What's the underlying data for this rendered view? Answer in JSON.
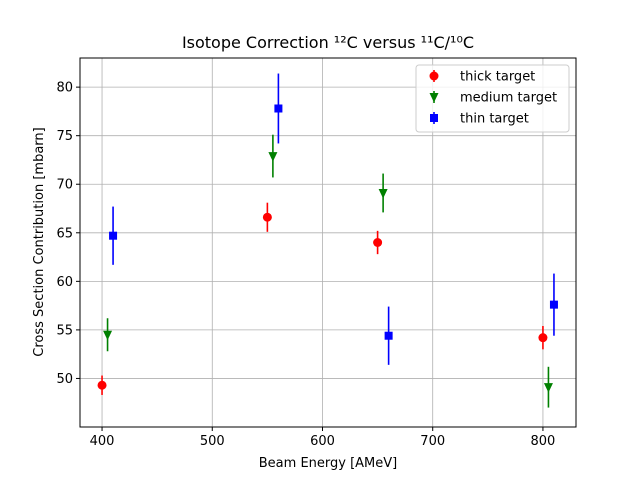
{
  "chart_data": {
    "type": "scatter",
    "title": "Isotope Correction ¹²C  versus ¹¹C/¹⁰C",
    "xlabel": "Beam Energy [AMeV]",
    "ylabel": "Cross Section Contribution [mbarn]",
    "xlim": [
      380,
      830
    ],
    "ylim": [
      45,
      83
    ],
    "xticks": [
      400,
      500,
      600,
      700,
      800
    ],
    "yticks": [
      50,
      55,
      60,
      65,
      70,
      75,
      80
    ],
    "grid": true,
    "legend_position": "top-right",
    "series": [
      {
        "name": "thick target",
        "color": "#ff0000",
        "marker": "circle",
        "x": [
          400,
          550,
          650,
          800
        ],
        "y": [
          49.3,
          66.6,
          64.0,
          54.2
        ],
        "yerr": [
          1.0,
          1.5,
          1.2,
          1.2
        ]
      },
      {
        "name": "medium target",
        "color": "#008000",
        "marker": "triangle-down",
        "x": [
          405,
          555,
          655,
          805
        ],
        "y": [
          54.5,
          72.9,
          69.1,
          49.1
        ],
        "yerr": [
          1.7,
          2.2,
          2.0,
          2.1
        ]
      },
      {
        "name": "thin target",
        "color": "#0000ff",
        "marker": "square",
        "x": [
          410,
          560,
          660,
          810
        ],
        "y": [
          64.7,
          77.8,
          54.4,
          57.6
        ],
        "yerr": [
          3.0,
          3.6,
          3.0,
          3.2
        ]
      }
    ]
  }
}
